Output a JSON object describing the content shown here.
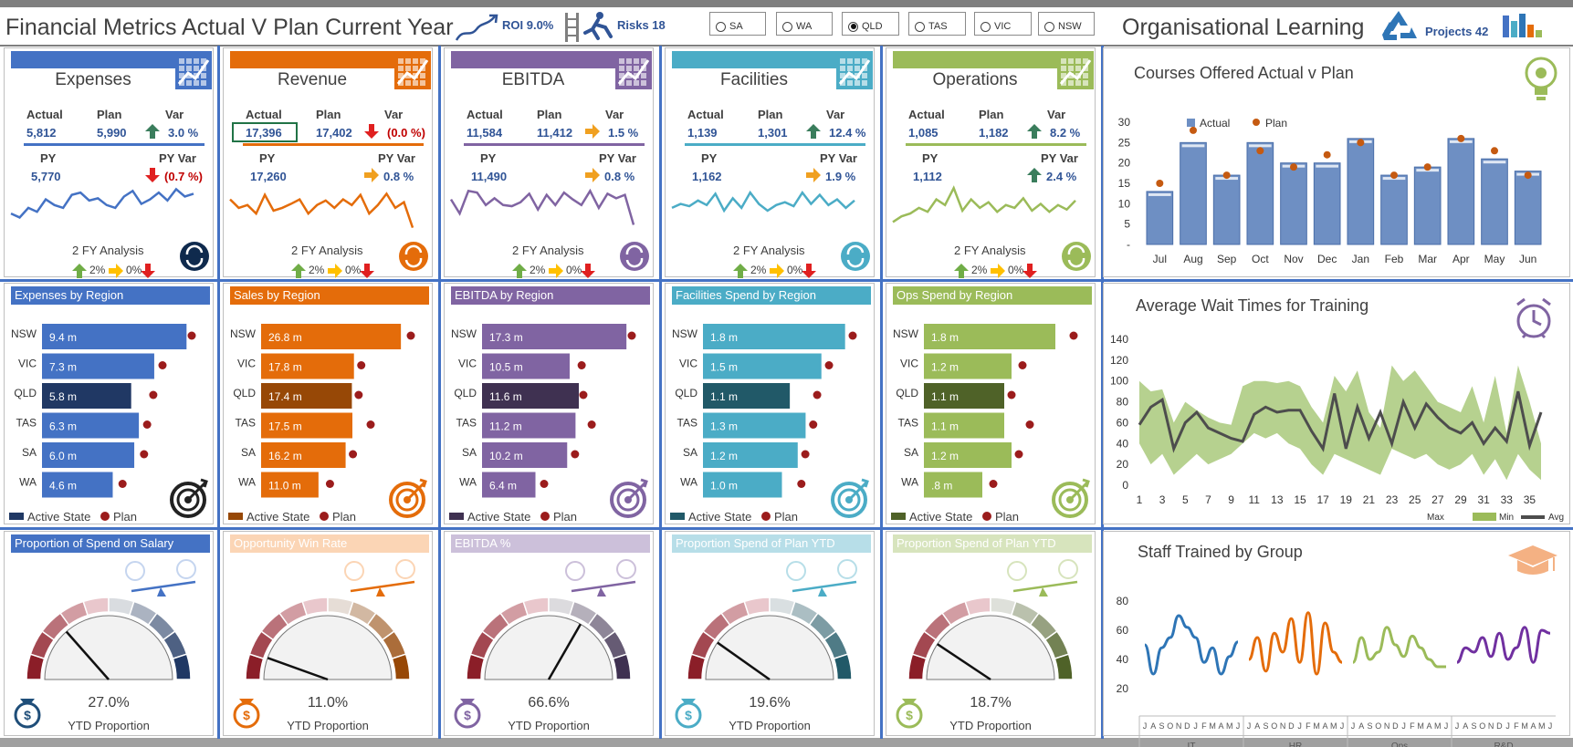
{
  "header": {
    "title": "Financial Metrics Actual V Plan Current Year",
    "roi": "ROI 9.0%",
    "risks": "Risks 18",
    "org_title": "Organisational Learning",
    "projects": "Projects 42"
  },
  "states": [
    {
      "label": "SA",
      "selected": false
    },
    {
      "label": "WA",
      "selected": false
    },
    {
      "label": "QLD",
      "selected": true
    },
    {
      "label": "TAS",
      "selected": false
    },
    {
      "label": "VIC",
      "selected": false
    },
    {
      "label": "NSW",
      "selected": false
    }
  ],
  "labels": {
    "actual": "Actual",
    "plan": "Plan",
    "var": "Var",
    "py": "PY",
    "py_var": "PY Var",
    "analysis": "2 FY Analysis",
    "legend_up": "2%",
    "legend_mid": "0%",
    "active_state": "Active State",
    "plan_legend": "Plan",
    "ytd": "YTD Proportion"
  },
  "colors": {
    "blue": "#4472c4",
    "orange": "#e46c0a",
    "purple": "#8064a2",
    "teal": "#4bacc6",
    "green": "#9bbb59"
  },
  "metrics": [
    {
      "name": "Expenses",
      "actual": "5,812",
      "plan": "5,990",
      "var": "3.0 %",
      "var_dir": "up",
      "py": "5,770",
      "py_var": "(0.7 %)",
      "py_dir": "down",
      "color": "#4472c4",
      "light": "#c5d5ef",
      "dark": "#203864",
      "region_title": "Expenses by Region",
      "regions": [
        [
          "NSW",
          "9.4 m",
          9.4,
          9.5
        ],
        [
          "VIC",
          "7.3 m",
          7.3,
          7.6
        ],
        [
          "QLD",
          "5.8 m",
          5.8,
          7.0
        ],
        [
          "TAS",
          "6.3 m",
          6.3,
          6.6
        ],
        [
          "SA",
          "6.0 m",
          6.0,
          6.4
        ],
        [
          "WA",
          "4.6 m",
          4.6,
          5.0
        ]
      ],
      "gauge_title": "Proportion of Spend on Salary",
      "gauge_value": "27.0%",
      "gauge_pct": 0.27,
      "spark": [
        45,
        38,
        55,
        48,
        70,
        60,
        55,
        78,
        82,
        68,
        72,
        60,
        55,
        75,
        85,
        62,
        70,
        82,
        68,
        88,
        75,
        80
      ]
    },
    {
      "name": "Revenue",
      "actual": "17,396",
      "plan": "17,402",
      "var": "(0.0 %)",
      "var_dir": "down",
      "py": "17,260",
      "py_var": "0.8 %",
      "py_dir": "side",
      "color": "#e46c0a",
      "light": "#fbd5b5",
      "dark": "#974806",
      "region_title": "Sales by Region",
      "regions": [
        [
          "NSW",
          "26.8 m",
          26.8,
          28.0
        ],
        [
          "VIC",
          "17.8 m",
          17.8,
          18.5
        ],
        [
          "QLD",
          "17.4 m",
          17.4,
          18.0
        ],
        [
          "TAS",
          "17.5 m",
          17.5,
          20.3
        ],
        [
          "SA",
          "16.2 m",
          16.2,
          16.9
        ],
        [
          "WA",
          "11.0 m",
          11.0,
          12.5
        ]
      ],
      "gauge_title": "Opportunity Win Rate",
      "gauge_value": "11.0%",
      "gauge_pct": 0.11,
      "spark": [
        70,
        55,
        60,
        45,
        78,
        50,
        55,
        62,
        70,
        45,
        60,
        68,
        55,
        70,
        60,
        78,
        45,
        60,
        80,
        55,
        65,
        20
      ]
    },
    {
      "name": "EBITDA",
      "actual": "11,584",
      "plan": "11,412",
      "var": "1.5 %",
      "var_dir": "side",
      "py": "11,490",
      "py_var": "0.8 %",
      "py_dir": "side",
      "color": "#8064a2",
      "light": "#ccc0da",
      "dark": "#3f3151",
      "region_title": "EBITDA by Region",
      "regions": [
        [
          "NSW",
          "17.3 m",
          17.3,
          17.5
        ],
        [
          "VIC",
          "10.5 m",
          10.5,
          11.5
        ],
        [
          "QLD",
          "11.6 m",
          11.6,
          11.7
        ],
        [
          "TAS",
          "11.2 m",
          11.2,
          12.7
        ],
        [
          "SA",
          "10.2 m",
          10.2,
          10.7
        ],
        [
          "WA",
          "6.4 m",
          6.4,
          7.0
        ]
      ],
      "gauge_title": "EBITDA %",
      "gauge_value": "66.6%",
      "gauge_pct": 0.666,
      "spark": [
        70,
        45,
        85,
        82,
        60,
        72,
        60,
        58,
        65,
        80,
        52,
        78,
        60,
        82,
        70,
        60,
        85,
        55,
        80,
        72,
        78,
        25
      ]
    },
    {
      "name": "Facilities",
      "actual": "1,139",
      "plan": "1,301",
      "var": "12.4 %",
      "var_dir": "up",
      "py": "1,162",
      "py_var": "1.9 %",
      "py_dir": "side",
      "color": "#4bacc6",
      "light": "#b7dee8",
      "dark": "#215968",
      "region_title": "Facilities Spend by Region",
      "regions": [
        [
          "NSW",
          "1.8 m",
          1.8,
          1.85
        ],
        [
          "VIC",
          "1.5 m",
          1.5,
          1.55
        ],
        [
          "QLD",
          "1.1 m",
          1.1,
          1.4
        ],
        [
          "TAS",
          "1.3 m",
          1.3,
          1.35
        ],
        [
          "SA",
          "1.2 m",
          1.2,
          1.25
        ],
        [
          "WA",
          "1.0 m",
          1.0,
          1.2
        ]
      ],
      "gauge_title": "Proportion Spend of Plan YTD",
      "gauge_value": "19.6%",
      "gauge_pct": 0.196,
      "spark": [
        55,
        62,
        58,
        68,
        60,
        80,
        50,
        72,
        55,
        82,
        62,
        50,
        60,
        65,
        58,
        82,
        62,
        78,
        60,
        70,
        55,
        68
      ]
    },
    {
      "name": "Operations",
      "actual": "1,085",
      "plan": "1,182",
      "var": "8.2 %",
      "var_dir": "up",
      "py": "1,112",
      "py_var": "2.4 %",
      "py_dir": "up",
      "color": "#9bbb59",
      "light": "#d7e4bd",
      "dark": "#4f6228",
      "region_title": "Ops Spend by Region",
      "regions": [
        [
          "NSW",
          "1.8 m",
          1.8,
          2.0
        ],
        [
          "VIC",
          "1.2 m",
          1.2,
          1.3
        ],
        [
          "QLD",
          "1.1 m",
          1.1,
          1.15
        ],
        [
          "TAS",
          "1.1 m",
          1.1,
          1.4
        ],
        [
          "SA",
          "1.2 m",
          1.2,
          1.25
        ],
        [
          "WA",
          ".8 m",
          0.8,
          0.9
        ]
      ],
      "gauge_title": "Proportion Spend of Plan YTD",
      "gauge_value": "18.7%",
      "gauge_pct": 0.187,
      "spark": [
        30,
        40,
        45,
        55,
        48,
        70,
        60,
        90,
        50,
        70,
        55,
        65,
        48,
        60,
        55,
        72,
        50,
        62,
        48,
        60,
        52,
        68
      ]
    }
  ],
  "chart_data": [
    {
      "type": "bar",
      "title": "Courses Offered Actual v Plan",
      "categories": [
        "Jul",
        "Aug",
        "Sep",
        "Oct",
        "Nov",
        "Dec",
        "Jan",
        "Feb",
        "Mar",
        "Apr",
        "May",
        "Jun"
      ],
      "series": [
        {
          "name": "Actual",
          "values": [
            13,
            25,
            17,
            25,
            20,
            20,
            26,
            17,
            19,
            26,
            21,
            18
          ]
        },
        {
          "name": "Plan",
          "values": [
            15,
            28,
            17,
            23,
            19,
            22,
            25,
            17,
            19,
            26,
            23,
            17
          ]
        }
      ],
      "ylim": [
        0,
        30
      ],
      "yticks": [
        "30",
        "25",
        "20",
        "15",
        "10",
        "5",
        "-"
      ],
      "legend": "top-left"
    },
    {
      "type": "area",
      "title": "Average Wait Times for Training",
      "x": [
        1,
        2,
        3,
        4,
        5,
        6,
        7,
        8,
        9,
        10,
        11,
        12,
        13,
        14,
        15,
        16,
        17,
        18,
        19,
        20,
        21,
        22,
        23,
        24,
        25,
        26,
        27,
        28,
        29,
        30,
        31,
        32,
        33,
        34,
        35,
        36
      ],
      "xticks": [
        "1",
        "3",
        "5",
        "7",
        "9",
        "11",
        "13",
        "15",
        "17",
        "19",
        "21",
        "23",
        "25",
        "27",
        "29",
        "31",
        "33",
        "35"
      ],
      "series": [
        {
          "name": "Max",
          "values": [
            100,
            90,
            92,
            60,
            80,
            72,
            65,
            60,
            58,
            95,
            100,
            100,
            98,
            100,
            95,
            75,
            60,
            105,
            90,
            110,
            70,
            55,
            115,
            100,
            110,
            95,
            80,
            75,
            70,
            95,
            60,
            105,
            50,
            115,
            80,
            40
          ]
        },
        {
          "name": "Min",
          "values": [
            40,
            20,
            30,
            10,
            20,
            30,
            20,
            25,
            30,
            40,
            50,
            45,
            50,
            40,
            35,
            20,
            10,
            30,
            25,
            20,
            15,
            10,
            35,
            30,
            25,
            30,
            20,
            15,
            20,
            30,
            10,
            25,
            5,
            30,
            15,
            5
          ]
        },
        {
          "name": "Avg",
          "values": [
            58,
            75,
            82,
            35,
            60,
            70,
            55,
            50,
            45,
            42,
            68,
            75,
            70,
            72,
            72,
            52,
            35,
            88,
            35,
            75,
            45,
            70,
            40,
            80,
            55,
            78,
            65,
            55,
            50,
            60,
            40,
            55,
            42,
            90,
            38,
            70
          ]
        }
      ],
      "ylim": [
        0,
        140
      ],
      "yticks": [
        "140",
        "120",
        "100",
        "80",
        "60",
        "40",
        "20",
        "0"
      ],
      "legend": "bottom-right"
    },
    {
      "type": "line",
      "title": "Staff Trained by Group",
      "groups": [
        "IT",
        "HR",
        "Ops",
        "R&D"
      ],
      "months": [
        "J",
        "A",
        "S",
        "O",
        "N",
        "D",
        "J",
        "F",
        "M",
        "A",
        "M",
        "J"
      ],
      "series": [
        {
          "name": "IT",
          "values": [
            50,
            30,
            48,
            55,
            70,
            62,
            55,
            38,
            48,
            30,
            42,
            52
          ]
        },
        {
          "name": "HR",
          "values": [
            40,
            55,
            32,
            58,
            45,
            68,
            38,
            72,
            30,
            65,
            45,
            38
          ]
        },
        {
          "name": "Ops",
          "values": [
            38,
            55,
            40,
            45,
            62,
            50,
            42,
            56,
            48,
            40,
            35,
            35
          ]
        },
        {
          "name": "R&D",
          "values": [
            38,
            48,
            45,
            55,
            42,
            58,
            40,
            48,
            62,
            38,
            60,
            58
          ]
        }
      ],
      "ylim": [
        0,
        80
      ],
      "yticks": [
        "80",
        "60",
        "40",
        "20"
      ]
    }
  ]
}
